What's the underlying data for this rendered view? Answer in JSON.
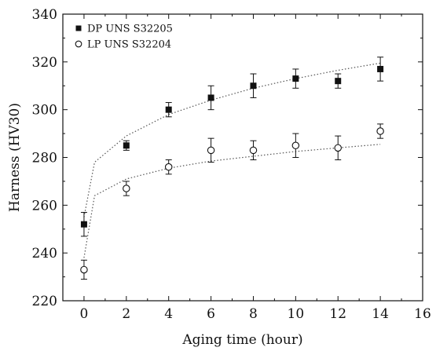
{
  "chart_data": {
    "type": "scatter",
    "title": "",
    "xlabel": "Aging time (hour)",
    "ylabel": "Harness (HV30)",
    "xlim": [
      -1,
      16
    ],
    "ylim": [
      220,
      340
    ],
    "x_ticks": [
      0,
      2,
      4,
      6,
      8,
      10,
      12,
      14,
      16
    ],
    "y_ticks": [
      220,
      240,
      260,
      280,
      300,
      320,
      340
    ],
    "x_tick_labels": [
      "0",
      "2",
      "4",
      "6",
      "8",
      "10",
      "12",
      "14",
      "16"
    ],
    "y_tick_labels": [
      "220",
      "240",
      "260",
      "280",
      "300",
      "320",
      "340"
    ],
    "grid": false,
    "legend_position": "top-left",
    "series": [
      {
        "name": "DP UNS S32205",
        "marker": "filled-square",
        "color": "#111111",
        "x": [
          0,
          2,
          4,
          6,
          8,
          10,
          12,
          14
        ],
        "y": [
          252,
          285,
          300,
          305,
          310,
          313,
          312,
          317
        ],
        "error": [
          5,
          2,
          3,
          5,
          5,
          4,
          3,
          5
        ],
        "fit_curve": [
          [
            0,
            255
          ],
          [
            0.5,
            278
          ],
          [
            2,
            289
          ],
          [
            4,
            298
          ],
          [
            6,
            304
          ],
          [
            8,
            309
          ],
          [
            10,
            313
          ],
          [
            12,
            316.5
          ],
          [
            14,
            319.5
          ]
        ]
      },
      {
        "name": "LP UNS S32204",
        "marker": "open-circle",
        "color": "#111111",
        "x": [
          0,
          2,
          4,
          6,
          8,
          10,
          12,
          14
        ],
        "y": [
          233,
          267,
          276,
          283,
          283,
          285,
          284,
          291
        ],
        "error": [
          4,
          3,
          3,
          5,
          4,
          5,
          5,
          3
        ],
        "fit_curve": [
          [
            0,
            238
          ],
          [
            0.5,
            264
          ],
          [
            2,
            271
          ],
          [
            4,
            275.5
          ],
          [
            6,
            278.5
          ],
          [
            8,
            280.5
          ],
          [
            10,
            282.5
          ],
          [
            12,
            284
          ],
          [
            14,
            285.5
          ]
        ]
      }
    ]
  }
}
